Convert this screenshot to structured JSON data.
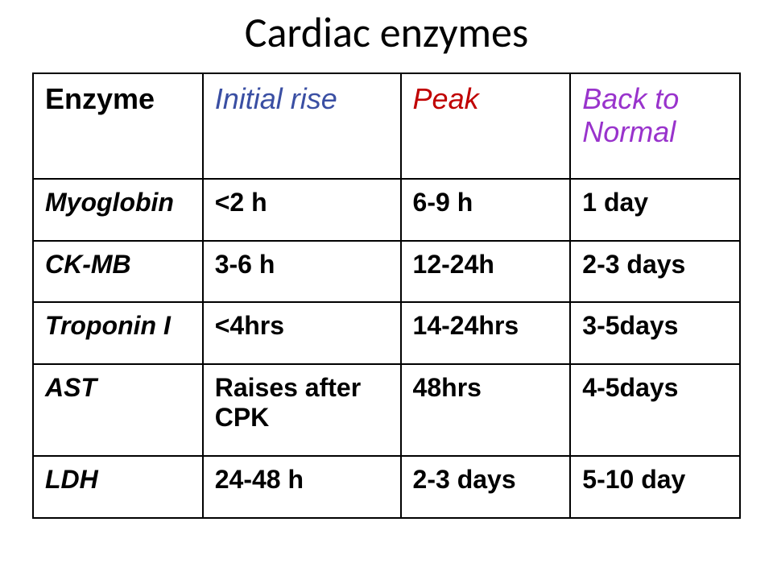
{
  "title": "Cardiac enzymes",
  "headers": {
    "enzyme": "Enzyme",
    "initial": "Initial rise",
    "peak": "Peak",
    "back": "Back to Normal"
  },
  "header_colors": {
    "enzyme": "#000000",
    "initial": "#3a4fa3",
    "peak": "#c00000",
    "back": "#9933cc"
  },
  "rows": [
    {
      "enzyme": "Myoglobin",
      "initial": "<2 h",
      "peak": "6-9 h",
      "back": "1 day"
    },
    {
      "enzyme": "CK-MB",
      "initial": "3-6 h",
      "peak": "12-24h",
      "back": "2-3 days"
    },
    {
      "enzyme": "Troponin I",
      "initial": "<4hrs",
      "peak": "14-24hrs",
      "back": "3-5days"
    },
    {
      "enzyme": "AST",
      "initial": "Raises after CPK",
      "peak": "48hrs",
      "back": "4-5days"
    },
    {
      "enzyme": "LDH",
      "initial": "24-48 h",
      "peak": "2-3 days",
      "back": "5-10 day"
    }
  ],
  "styling": {
    "background": "#ffffff",
    "border_color": "#000000",
    "title_font": "Calibri",
    "body_font": "Comic Sans MS",
    "title_fontsize": 52,
    "header_fontsize": 36,
    "cell_fontsize": 32
  }
}
